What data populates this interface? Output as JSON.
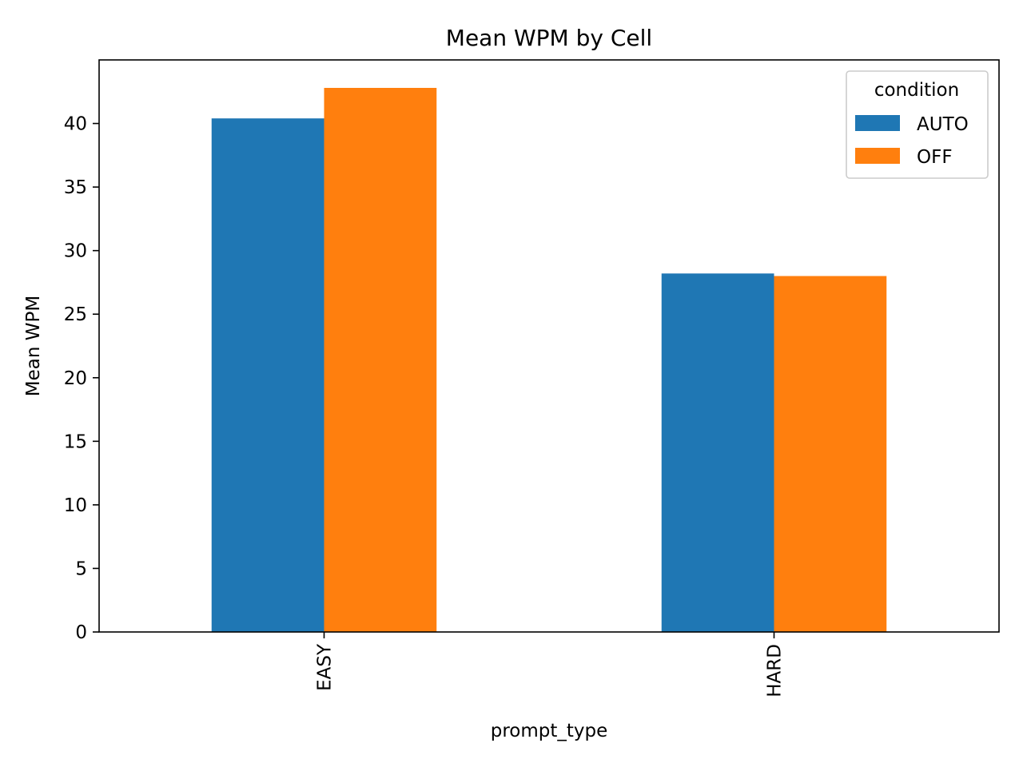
{
  "chart_data": {
    "type": "bar",
    "title": "Mean WPM by Cell",
    "xlabel": "prompt_type",
    "ylabel": "Mean WPM",
    "categories": [
      "EASY",
      "HARD"
    ],
    "series": [
      {
        "name": "AUTO",
        "color": "#1f77b4",
        "values": [
          40.4,
          28.2
        ]
      },
      {
        "name": "OFF",
        "color": "#ff7f0e",
        "values": [
          42.8,
          28.0
        ]
      }
    ],
    "ylim": [
      0,
      45
    ],
    "yticks": [
      0,
      5,
      10,
      15,
      20,
      25,
      30,
      35,
      40
    ],
    "grid": false,
    "legend": {
      "title": "condition",
      "placement": "top-right"
    }
  }
}
